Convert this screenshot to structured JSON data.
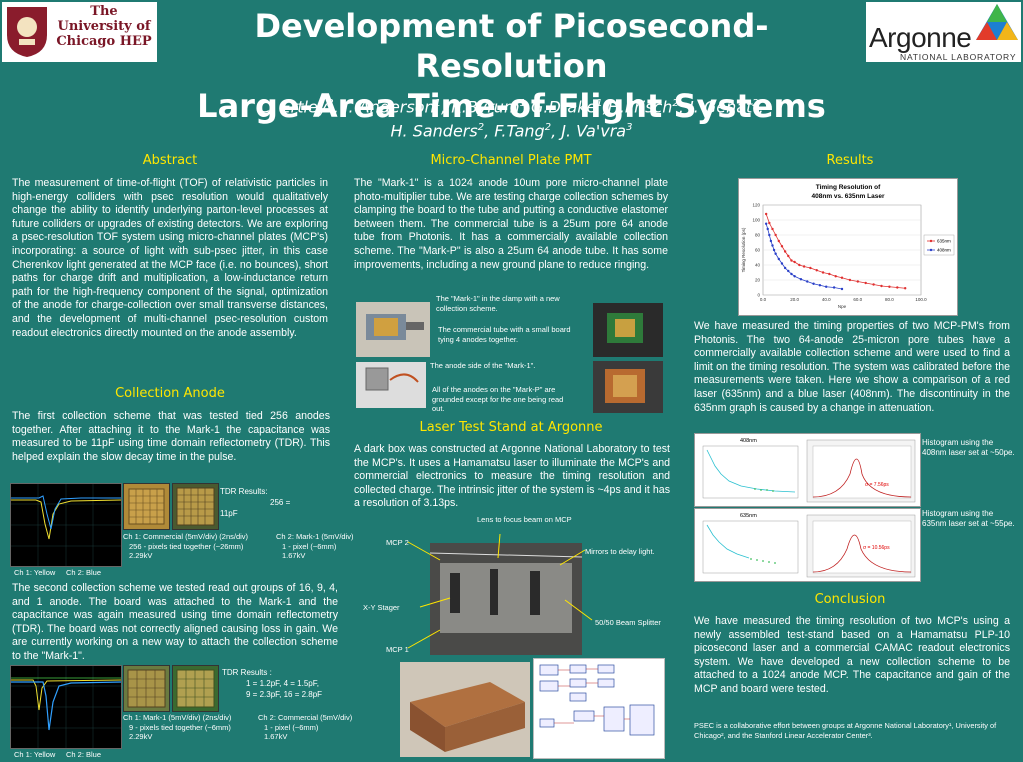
{
  "header": {
    "uc_logo": "The University of Chicago HEP",
    "argonne_logo": "Argonne",
    "argonne_sub": "NATIONAL LABORATORY",
    "title_line1": "Development of Picosecond-Resolution",
    "title_line2": "Large-Area Time-of-Flight Systems",
    "authors": [
      {
        "name": "C. Ertley",
        "aff": "2"
      },
      {
        "name": "J. Anderson",
        "aff": "1"
      },
      {
        "name": "K.Byrum",
        "aff": "1"
      },
      {
        "name": "G.Drake",
        "aff": "1"
      },
      {
        "name": "H.Frisch",
        "aff": "2"
      },
      {
        "name": "J. Genat",
        "aff": "2"
      },
      {
        "name": "H. Sanders",
        "aff": "2"
      },
      {
        "name": "F.Tang",
        "aff": "2"
      },
      {
        "name": "J. Va'vra",
        "aff": "3"
      }
    ]
  },
  "abstract": {
    "heading": "Abstract",
    "text": "The measurement of time-of-flight (TOF) of relativistic particles in high-energy colliders with psec resolution would qualitatively change the ability to identify underlying parton-level processes at future colliders or upgrades of existing detectors.  We are exploring a psec-resolution TOF system using micro-channel plates (MCP's) incorporating: a source of light with sub-psec jitter, in this case Cherenkov light generated at the MCP face (i.e. no bounces), short paths for charge drift and multiplication, a low-inductance return path for the high-frequency component of the  signal, optimization of the anode for charge-collection over small transverse distances, and the development of multi-channel psec-resolution custom readout electronics directly mounted on the anode assembly."
  },
  "collection_anode": {
    "heading": "Collection Anode",
    "text1": "The first collection scheme that was tested tied 256 anodes together. After attaching it to the Mark-1 the capacitance was measured to be 11pF using time domain reflectometry (TDR). This helped explain the slow decay time in the pulse.",
    "tdr1_label": "TDR Results:",
    "tdr1_value": "256 =",
    "tdr1_value2": "11pF",
    "ch1_caption_a": "Ch 1: Commercial (5mV/div) (2ns/div)",
    "ch1_caption_b": "256 - pixels tied together (~26mm)",
    "ch1_caption_c": "2.29kV",
    "ch2_caption_a": "Ch 2: Mark-1 (5mV/div)",
    "ch2_caption_b": "1 - pixel (~6mm)",
    "ch2_caption_c": "1.67kV",
    "scope1_legend": [
      "Ch 1: Yellow",
      "Ch 2: Blue"
    ],
    "text2": "The second collection scheme we tested read out groups of 16, 9, 4, and 1 anode. The board was attached to the Mark-1 and the capacitance was again measured using time domain reflectometry (TDR). The board was not correctly aligned causing loss in gain. We are currently working on a new way to attach the collection scheme to the \"Mark-1\".",
    "tdr2_label": "TDR Results :",
    "tdr2_line1": "1 = 1.2pF, 4 = 1.5pF,",
    "tdr2_line2": "9 = 2.3pF, 16 = 2.8pF",
    "ch1b_caption_a": "Ch 1: Mark-1 (5mV/div) (2ns/div)",
    "ch1b_caption_b": "9 - pixels tied together (~6mm)",
    "ch1b_caption_c": "2.29kV",
    "ch2b_caption_a": "Ch 2: Commercial (5mV/div)",
    "ch2b_caption_b": "1 - pixel (~6mm)",
    "ch2b_caption_c": "1.67kV",
    "scope2_legend": [
      "Ch 1: Yellow",
      "Ch 2: Blue"
    ]
  },
  "mcp": {
    "heading": "Micro-Channel Plate PMT",
    "text": "The \"Mark-1\" is a 1024 anode 10um pore micro-channel plate photo-multiplier tube. We are testing charge collection schemes by clamping the board to the tube and putting a conductive elastomer between them. The commercial tube is a 25um pore 64 anode tube from Photonis. It has a commercially available collection scheme. The \"Mark-P\" is also a 25um 64 anode tube. It has some improvements, including a new ground plane to reduce ringing.",
    "cap1": "The \"Mark-1\" in the clamp with a new collection scheme.",
    "cap2": "The commercial tube with a small board tying 4 anodes together.",
    "cap3": "The anode side of the \"Mark-1\".",
    "cap4": "All of the anodes on the \"Mark-P\" are grounded except for the one being read out."
  },
  "laser": {
    "heading": "Laser Test Stand at Argonne",
    "text": "A dark box was constructed at Argonne National Laboratory to test the MCP's. It uses a Hamamatsu laser to illuminate the MCP's and commercial electronics to measure the timing resolution and collected charge. The intrinsic jitter of the system is ~4ps and it has a resolution of 3.13ps.",
    "lab_lens": "Lens to focus beam on MCP",
    "lab_mcp2": "MCP 2",
    "lab_mirrors": "Mirrors to delay light.",
    "lab_xy": "X-Y Stager",
    "lab_split": "50/50 Beam Splitter",
    "lab_mcp1": "MCP 1"
  },
  "results": {
    "heading": "Results",
    "text": "We have measured the timing properties of two MCP-PM's from Photonis. The two 64-anode 25-micron pore tubes have a commercially available collection scheme and were used to find a limit on the timing resolution. The system was calibrated before the measurements were taken. Here we show a comparison of a red laser (635nm) and a blue laser (408nm). The discontinuity in the 635nm graph is caused by a change in attenuation.",
    "hist1_caption": "Histogram using the 408nm laser set at ~50pe.",
    "hist2_caption": "Histogram using the 635nm laser set at ~55pe.",
    "panel1_title": "408nm",
    "panel2_title": "635nm",
    "hist1_fit": "σ = 7.56ps",
    "hist2_fit": "σ = 10.56ps"
  },
  "conclusion": {
    "heading": "Conclusion",
    "text": "We have measured the timing resolution of two MCP's using a newly assembled test-stand based on a Hamamatsu PLP-10 picosecond laser and a commercial CAMAC readout electronics system. We have developed a new collection scheme to be attached to a 1024 anode MCP. The capacitance and gain of the MCP and board were tested.",
    "footnote": "PSEC  is a collaborative effort between groups at Argonne National Laboratory¹, University of Chicago², and the Stanford Linear Accelerator Center³."
  },
  "chart_data": {
    "type": "line",
    "title": "Timing Resolution of 408nm vs. 635nm Laser",
    "xlabel": "Npe",
    "ylabel": "Timing Resolution (ps)",
    "xlim": [
      0,
      100
    ],
    "ylim": [
      0,
      120
    ],
    "xticks": [
      "0.0",
      "20.0",
      "40.0",
      "60.0",
      "80.0",
      "100.0"
    ],
    "yticks": [
      "0",
      "20",
      "40",
      "60",
      "80",
      "100",
      "120"
    ],
    "legend_position": "right",
    "series": [
      {
        "name": "635nm",
        "color": "#e03030",
        "x": [
          2,
          4,
          6,
          8,
          10,
          12,
          14,
          16,
          18,
          20,
          23,
          26,
          30,
          34,
          38,
          42,
          46,
          50,
          55,
          60,
          65,
          70,
          75,
          80,
          85,
          90
        ],
        "y": [
          108,
          96,
          88,
          80,
          72,
          65,
          58,
          52,
          46,
          44,
          40,
          38,
          36,
          33,
          30,
          28,
          25,
          23,
          20,
          18,
          16,
          14,
          12,
          11,
          10,
          9
        ]
      },
      {
        "name": "408nm",
        "color": "#2a40c8",
        "x": [
          2,
          3,
          4,
          5,
          6,
          7,
          8,
          10,
          12,
          14,
          16,
          18,
          20,
          24,
          28,
          32,
          36,
          40,
          45,
          50
        ],
        "y": [
          95,
          88,
          80,
          72,
          66,
          60,
          55,
          48,
          42,
          36,
          32,
          28,
          25,
          21,
          18,
          15,
          13,
          11,
          10,
          8
        ]
      }
    ]
  }
}
